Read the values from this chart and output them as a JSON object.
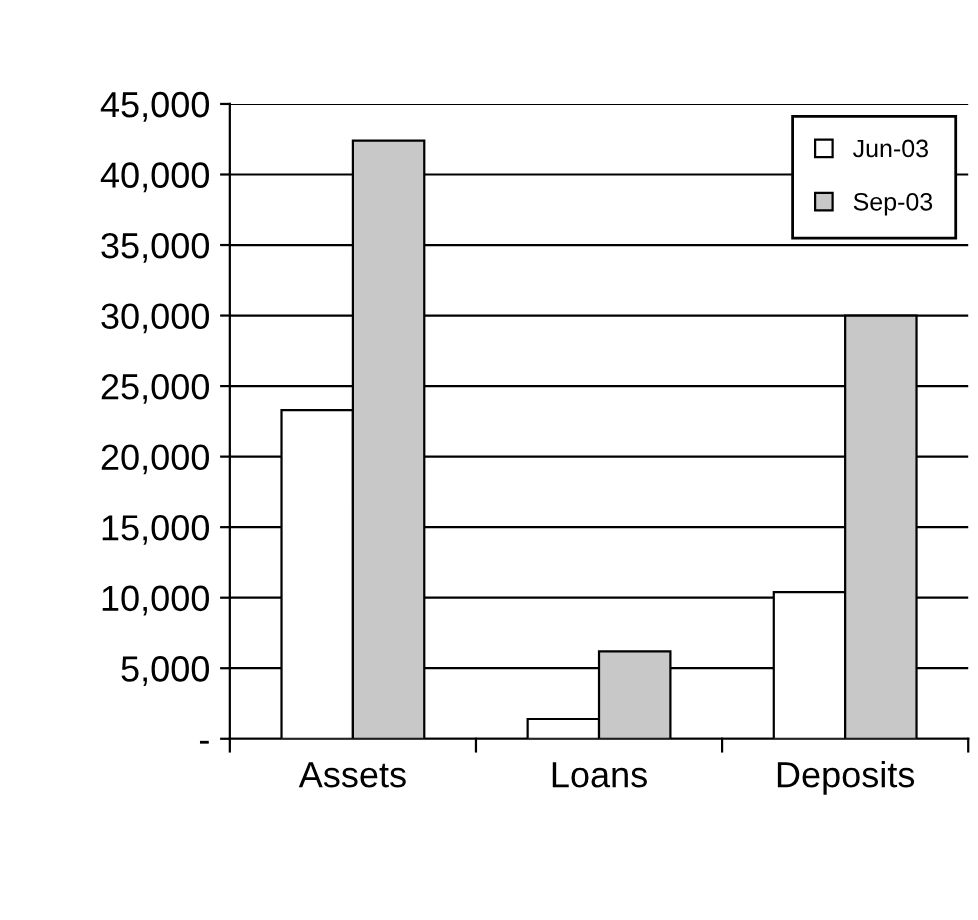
{
  "chart_data": {
    "type": "bar",
    "categories": [
      "Assets",
      "Loans",
      "Deposits"
    ],
    "series": [
      {
        "name": "Jun-03",
        "color": "#ffffff",
        "values": [
          23300,
          1400,
          10400
        ]
      },
      {
        "name": "Sep-03",
        "color": "#c8c8c8",
        "values": [
          42400,
          6200,
          30000
        ]
      }
    ],
    "ylim": [
      0,
      45000
    ],
    "yticks": [
      {
        "value": 0,
        "label": "-"
      },
      {
        "value": 5000,
        "label": "5,000"
      },
      {
        "value": 10000,
        "label": "10,000"
      },
      {
        "value": 15000,
        "label": "15,000"
      },
      {
        "value": 20000,
        "label": "20,000"
      },
      {
        "value": 25000,
        "label": "25,000"
      },
      {
        "value": 30000,
        "label": "30,000"
      },
      {
        "value": 35000,
        "label": "35,000"
      },
      {
        "value": 40000,
        "label": "40,000"
      },
      {
        "value": 45000,
        "label": "45,000"
      }
    ],
    "grid": "y",
    "legend": "top right"
  }
}
